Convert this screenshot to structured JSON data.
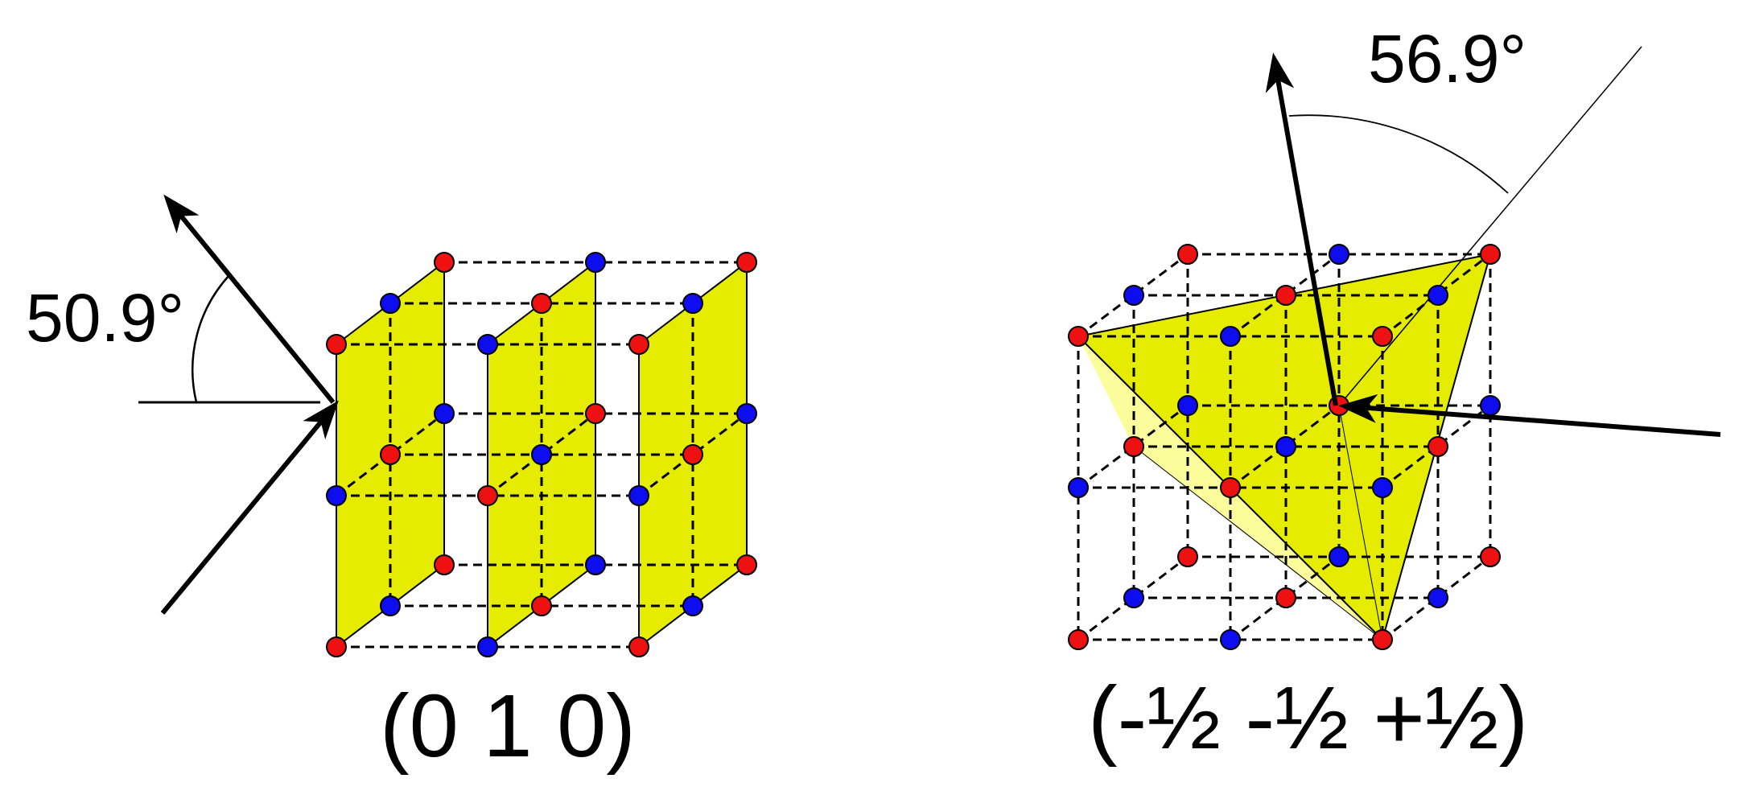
{
  "left_panel": {
    "angle_label": "50.9°",
    "plane_label": "(0 1 0)"
  },
  "right_panel": {
    "angle_label": "56.9°",
    "plane_label": "(-½ -½ +½)"
  },
  "colors": {
    "plane_fill": "#e6ec00",
    "plane_fill_light": "#fbfc9c",
    "atom_a": "#ee1111",
    "atom_b": "#0d0df0",
    "edge": "#000000"
  }
}
